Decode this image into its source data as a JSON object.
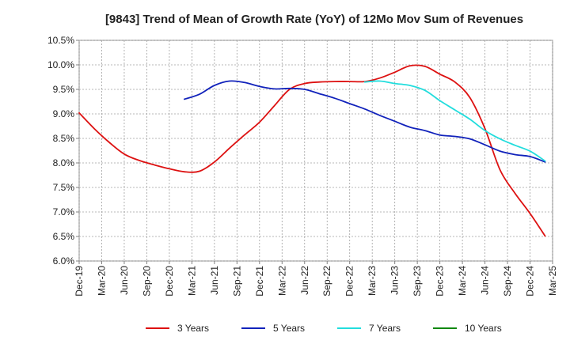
{
  "chart_data": {
    "type": "line",
    "title": "[9843]  Trend of Mean of Growth Rate (YoY) of 12Mo Mov Sum of Revenues",
    "xlabel": "",
    "ylabel": "",
    "y_tick_labels": [
      "10.5%",
      "10.0%",
      "9.5%",
      "9.0%",
      "8.5%",
      "8.0%",
      "7.5%",
      "7.0%",
      "6.5%",
      "6.0%"
    ],
    "y_ticks": [
      10.5,
      10.0,
      9.5,
      9.0,
      8.5,
      8.0,
      7.5,
      7.0,
      6.5,
      6.0
    ],
    "ylim": [
      6.0,
      10.5
    ],
    "x_tick_labels": [
      "Dec-19",
      "Mar-20",
      "Jun-20",
      "Sep-20",
      "Dec-20",
      "Mar-21",
      "Jun-21",
      "Sep-21",
      "Dec-21",
      "Mar-22",
      "Jun-22",
      "Sep-22",
      "Dec-22",
      "Mar-23",
      "Jun-23",
      "Sep-23",
      "Dec-23",
      "Mar-24",
      "Jun-24",
      "Sep-24",
      "Dec-24",
      "Mar-25"
    ],
    "xlim": [
      0,
      63
    ],
    "x_unit": "months since Dec-19",
    "grid": true,
    "legend_position": "bottom",
    "series": [
      {
        "name": "3 Years",
        "color": "#dd1111",
        "x": [
          0,
          2,
          4,
          6,
          8,
          10,
          12,
          14,
          16,
          18,
          20,
          22,
          24,
          26,
          28,
          30,
          32,
          34,
          36,
          38,
          40,
          42,
          44,
          46,
          48,
          50,
          52,
          54,
          56,
          58,
          60,
          62
        ],
        "values": [
          9.02,
          8.7,
          8.42,
          8.18,
          8.05,
          7.96,
          7.88,
          7.82,
          7.83,
          8.02,
          8.3,
          8.57,
          8.83,
          9.17,
          9.5,
          9.62,
          9.65,
          9.66,
          9.66,
          9.66,
          9.73,
          9.85,
          9.98,
          9.97,
          9.81,
          9.65,
          9.33,
          8.7,
          7.86,
          7.38,
          6.97,
          6.51
        ]
      },
      {
        "name": "5 Years",
        "color": "#1122bb",
        "x": [
          14,
          16,
          18,
          20,
          22,
          24,
          26,
          28,
          30,
          32,
          34,
          36,
          38,
          40,
          42,
          44,
          46,
          48,
          50,
          52,
          54,
          56,
          58,
          60,
          62
        ],
        "values": [
          9.3,
          9.4,
          9.58,
          9.67,
          9.64,
          9.56,
          9.51,
          9.52,
          9.5,
          9.41,
          9.32,
          9.21,
          9.1,
          8.97,
          8.85,
          8.73,
          8.66,
          8.57,
          8.54,
          8.49,
          8.37,
          8.24,
          8.17,
          8.13,
          8.02
        ]
      },
      {
        "name": "7 Years",
        "color": "#22dddd",
        "x": [
          38,
          40,
          42,
          44,
          46,
          48,
          50,
          52,
          54,
          56,
          58,
          60,
          62
        ],
        "values": [
          9.65,
          9.67,
          9.62,
          9.58,
          9.48,
          9.27,
          9.08,
          8.89,
          8.66,
          8.49,
          8.36,
          8.24,
          8.04
        ]
      },
      {
        "name": "10 Years",
        "color": "#118811",
        "x": [],
        "values": []
      }
    ]
  }
}
